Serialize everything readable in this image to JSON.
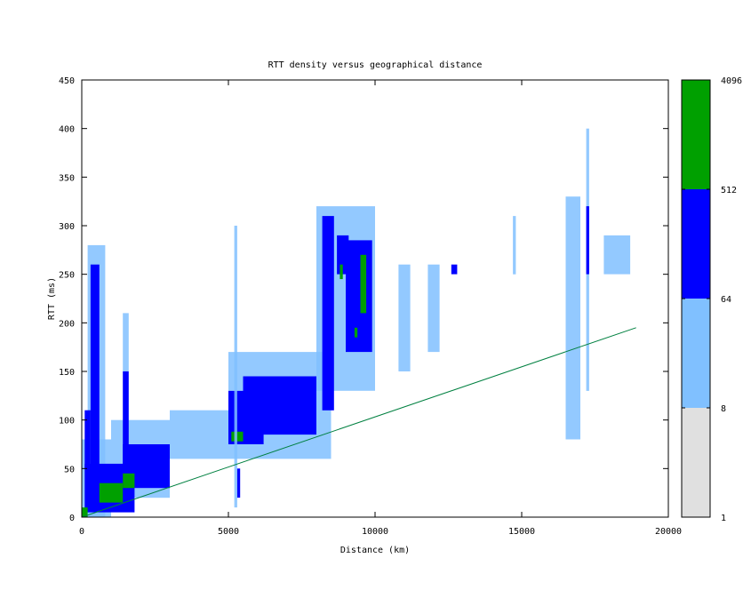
{
  "chart_data": {
    "type": "heatmap",
    "title": "RTT density versus geographical distance",
    "xlabel": "Distance (km)",
    "ylabel": "RTT (ms)",
    "xlim": [
      0,
      20000
    ],
    "ylim": [
      0,
      450
    ],
    "x_ticks": [
      0,
      5000,
      10000,
      15000,
      20000
    ],
    "y_ticks": [
      0,
      50,
      100,
      150,
      200,
      250,
      300,
      350,
      400,
      450
    ],
    "grid": false,
    "colorbar": {
      "scale": "log2",
      "ticks": [
        1,
        8,
        64,
        512,
        4096
      ],
      "bands": [
        {
          "from": 1,
          "to": 8,
          "color": "#e0e0e0"
        },
        {
          "from": 8,
          "to": 64,
          "color": "#80c0ff"
        },
        {
          "from": 64,
          "to": 512,
          "color": "#0000ff"
        },
        {
          "from": 512,
          "to": 4096,
          "color": "#00a000"
        }
      ]
    },
    "reference_line": {
      "color": "#008040",
      "points": [
        [
          0,
          0
        ],
        [
          18900,
          195
        ]
      ]
    },
    "density_regions": [
      {
        "x": [
          0,
          1000
        ],
        "y": [
          0,
          80
        ],
        "level": 1
      },
      {
        "x": [
          200,
          800
        ],
        "y": [
          0,
          280
        ],
        "level": 1
      },
      {
        "x": [
          1000,
          3000
        ],
        "y": [
          20,
          100
        ],
        "level": 1
      },
      {
        "x": [
          300,
          600
        ],
        "y": [
          30,
          260
        ],
        "level": 2
      },
      {
        "x": [
          100,
          1800
        ],
        "y": [
          5,
          55
        ],
        "level": 2
      },
      {
        "x": [
          1400,
          3000
        ],
        "y": [
          30,
          75
        ],
        "level": 2
      },
      {
        "x": [
          600,
          1400
        ],
        "y": [
          15,
          35
        ],
        "level": 3
      },
      {
        "x": [
          1400,
          1800
        ],
        "y": [
          30,
          45
        ],
        "level": 3
      },
      {
        "x": [
          3000,
          5000
        ],
        "y": [
          60,
          110
        ],
        "level": 1
      },
      {
        "x": [
          5000,
          8500
        ],
        "y": [
          60,
          170
        ],
        "level": 1
      },
      {
        "x": [
          5000,
          6200
        ],
        "y": [
          75,
          130
        ],
        "level": 2
      },
      {
        "x": [
          5500,
          8000
        ],
        "y": [
          85,
          145
        ],
        "level": 2
      },
      {
        "x": [
          5100,
          5500
        ],
        "y": [
          78,
          88
        ],
        "level": 3
      },
      {
        "x": [
          8000,
          10000
        ],
        "y": [
          130,
          320
        ],
        "level": 1
      },
      {
        "x": [
          8200,
          8600
        ],
        "y": [
          110,
          310
        ],
        "level": 2
      },
      {
        "x": [
          9000,
          9900
        ],
        "y": [
          170,
          285
        ],
        "level": 2
      },
      {
        "x": [
          8700,
          9100
        ],
        "y": [
          250,
          290
        ],
        "level": 2
      },
      {
        "x": [
          8800,
          8900
        ],
        "y": [
          245,
          260
        ],
        "level": 3
      },
      {
        "x": [
          9500,
          9700
        ],
        "y": [
          210,
          270
        ],
        "level": 3
      },
      {
        "x": [
          9300,
          9400
        ],
        "y": [
          185,
          195
        ],
        "level": 3
      },
      {
        "x": [
          10800,
          11200
        ],
        "y": [
          150,
          260
        ],
        "level": 1
      },
      {
        "x": [
          11800,
          12200
        ],
        "y": [
          170,
          260
        ],
        "level": 1
      },
      {
        "x": [
          12600,
          12800
        ],
        "y": [
          250,
          260
        ],
        "level": 2
      },
      {
        "x": [
          14700,
          14800
        ],
        "y": [
          250,
          310
        ],
        "level": 1
      },
      {
        "x": [
          17200,
          17300
        ],
        "y": [
          130,
          400
        ],
        "level": 1
      },
      {
        "x": [
          17200,
          17300
        ],
        "y": [
          250,
          320
        ],
        "level": 2
      },
      {
        "x": [
          16500,
          17000
        ],
        "y": [
          80,
          330
        ],
        "level": 1
      },
      {
        "x": [
          17800,
          18700
        ],
        "y": [
          250,
          290
        ],
        "level": 1
      },
      {
        "x": [
          1400,
          1600
        ],
        "y": [
          50,
          150
        ],
        "level": 2
      },
      {
        "x": [
          1400,
          1600
        ],
        "y": [
          150,
          210
        ],
        "level": 1
      },
      {
        "x": [
          5200,
          5300
        ],
        "y": [
          10,
          300
        ],
        "level": 1
      },
      {
        "x": [
          5300,
          5400
        ],
        "y": [
          20,
          50
        ],
        "level": 2
      },
      {
        "x": [
          100,
          300
        ],
        "y": [
          50,
          110
        ],
        "level": 2
      },
      {
        "x": [
          0,
          200
        ],
        "y": [
          0,
          10
        ],
        "level": 3
      }
    ]
  }
}
